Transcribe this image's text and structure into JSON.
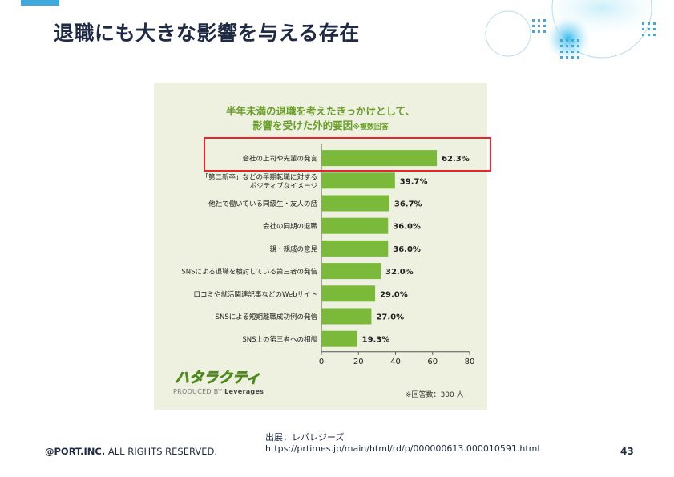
{
  "slide": {
    "title": "退職にも大きな影響を与える存在",
    "source_label": "出展：レバレジーズ",
    "source_url": "https://prtimes.jp/main/html/rd/p/000000613.000010591.html",
    "copyright_brand": "@PORT.INC.",
    "copyright_rest": "ALL RIGHTS RESERVED.",
    "page_number": "43"
  },
  "colors": {
    "bar": "#7bb93a",
    "title_green": "#6a9e2a",
    "panel_bg": "#eef1df",
    "highlight": "#e8242c",
    "accent_blue": "#3fa8df"
  },
  "chart_data": {
    "type": "bar",
    "orientation": "horizontal",
    "title_line1": "半年未満の退職を考えたきっかけとして、",
    "title_line2": "影響を受けた外的要因",
    "title_note": "※複数回答",
    "categories": [
      "会社の上司や先輩の発言",
      "「第二新卒」などの早期転職に対する|ポジティブなイメージ",
      "他社で働いている同級生・友人の話",
      "会社の同期の退職",
      "親・親戚の意見",
      "SNSによる退職を検討している第三者の発信",
      "口コミや就活関連記事などのWebサイト",
      "SNSによる短期離職成功例の発信",
      "SNS上の第三者への相談"
    ],
    "values": [
      62.3,
      39.7,
      36.7,
      36.0,
      36.0,
      32.0,
      29.0,
      27.0,
      19.3
    ],
    "value_labels": [
      "62.3%",
      "39.7%",
      "36.7%",
      "36.0%",
      "36.0%",
      "32.0%",
      "29.0%",
      "27.0%",
      "19.3%"
    ],
    "xlim": [
      0,
      80
    ],
    "xticks": [
      "0",
      "20",
      "40",
      "60",
      "80"
    ],
    "respondents_note": "※回答数：300 人",
    "brand_logo": "ハタラクティブ",
    "brand_produced_by": "PRODUCED BY",
    "brand_company": "Leverages",
    "highlighted_index": 0
  }
}
